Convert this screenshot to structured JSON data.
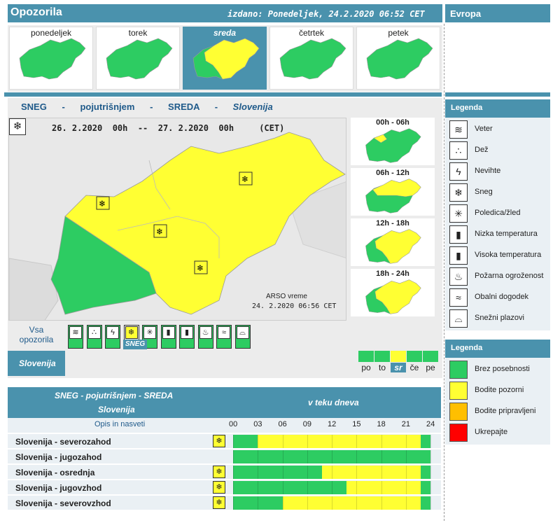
{
  "header": {
    "title": "Opozorila",
    "issued": "izdano: Ponedeljek, 24.2.2020 06:52 CET",
    "europe": "Evropa"
  },
  "days": [
    {
      "label": "ponedeljek",
      "selected": false
    },
    {
      "label": "torek",
      "selected": false
    },
    {
      "label": "sreda",
      "selected": true
    },
    {
      "label": "četrtek",
      "selected": false
    },
    {
      "label": "petek",
      "selected": false
    }
  ],
  "map_title": {
    "sneg": "SNEG",
    "dash1": "-",
    "level": "pojutrišnjem",
    "dash2": "-",
    "day": "SREDA",
    "dash3": "-",
    "region": "Slovenija"
  },
  "map_period": "26. 2.2020  00h  --  27. 2.2020  00h     (CET)",
  "map_credit": "ARSO vreme",
  "map_credit_time": "24. 2.2020  06:56 CET",
  "periods": [
    "00h - 06h",
    "06h - 12h",
    "12h - 18h",
    "18h - 24h"
  ],
  "all_warnings": "Vsa opozorila",
  "selected_type": "SNEG",
  "region_label": "Slovenija",
  "day_abbr": [
    "po",
    "to",
    "sr",
    "če",
    "pe"
  ],
  "legend1": {
    "title": "Legenda",
    "items": [
      {
        "label": "Veter",
        "icon": "wind-icon"
      },
      {
        "label": "Dež",
        "icon": "rain-icon"
      },
      {
        "label": "Nevihte",
        "icon": "thunderstorm-icon"
      },
      {
        "label": "Sneg",
        "icon": "snow-icon"
      },
      {
        "label": "Poledica/žled",
        "icon": "ice-icon"
      },
      {
        "label": "Nizka temperatura",
        "icon": "low-temp-icon"
      },
      {
        "label": "Visoka temperatura",
        "icon": "high-temp-icon"
      },
      {
        "label": "Požarna ogroženost",
        "icon": "fire-icon"
      },
      {
        "label": "Obalni dogodek",
        "icon": "coastal-icon"
      },
      {
        "label": "Snežni plazovi",
        "icon": "avalanche-icon"
      }
    ]
  },
  "legend2": {
    "title": "Legenda",
    "items": [
      {
        "label": "Brez posebnosti",
        "color": "#2dcc62"
      },
      {
        "label": "Bodite pozorni",
        "color": "#ffff33"
      },
      {
        "label": "Bodite pripravljeni",
        "color": "#ffbf00"
      },
      {
        "label": "Ukrepajte",
        "color": "#ff0000"
      }
    ]
  },
  "table": {
    "title1": "SNEG - pojutrišnjem - SREDA",
    "title2": "Slovenija",
    "right_title": "v teku dneva",
    "col_header": "Opis in nasveti",
    "hours": [
      "00",
      "03",
      "06",
      "09",
      "12",
      "15",
      "18",
      "21",
      "24"
    ],
    "rows": [
      {
        "name": "Slovenija - severozahod",
        "has_icon": true,
        "yellow_from": 3,
        "yellow_to": 22.8
      },
      {
        "name": "Slovenija - jugozahod",
        "has_icon": false,
        "yellow_from": 0,
        "yellow_to": 0
      },
      {
        "name": "Slovenija - osrednja",
        "has_icon": true,
        "yellow_from": 10.8,
        "yellow_to": 22.8
      },
      {
        "name": "Slovenija - jugovzhod",
        "has_icon": true,
        "yellow_from": 13.8,
        "yellow_to": 22.8
      },
      {
        "name": "Slovenija - severovzhod",
        "has_icon": true,
        "yellow_from": 6,
        "yellow_to": 22.8
      }
    ]
  },
  "colors": {
    "accent": "#4a92ad",
    "green": "#2dcc62",
    "yellow": "#ffff33",
    "orange": "#ffbf00",
    "red": "#ff0000"
  }
}
